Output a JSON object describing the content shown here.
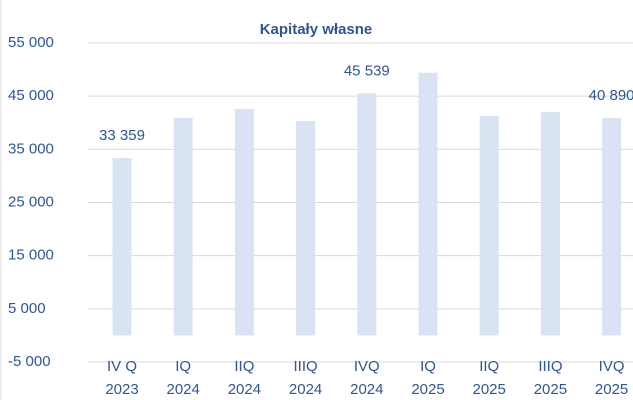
{
  "chart_data": {
    "type": "bar",
    "title": "Kapitały własne",
    "categories": [
      [
        "IV Q",
        "2023"
      ],
      [
        "IQ",
        "2024"
      ],
      [
        "IIQ",
        "2024"
      ],
      [
        "IIIQ",
        "2024"
      ],
      [
        "IVQ",
        "2024"
      ],
      [
        "IQ",
        "2025"
      ],
      [
        "IIQ",
        "2025"
      ],
      [
        "IIIQ",
        "2025"
      ],
      [
        "IVQ",
        "2025"
      ]
    ],
    "values": [
      33359,
      40900,
      42600,
      40300,
      45539,
      49400,
      41300,
      42000,
      40890
    ],
    "value_labels": [
      "33 359",
      null,
      null,
      null,
      "45 539",
      null,
      null,
      null,
      "40 890"
    ],
    "color": "#dae3f3",
    "ylim": [
      -5000,
      55000
    ],
    "yticks": [
      {
        "value": -5000,
        "label": "-5 000"
      },
      {
        "value": 5000,
        "label": "5 000"
      },
      {
        "value": 15000,
        "label": "15 000"
      },
      {
        "value": 25000,
        "label": "25 000"
      },
      {
        "value": 35000,
        "label": "35 000"
      },
      {
        "value": 45000,
        "label": "45 000"
      },
      {
        "value": 55000,
        "label": "55 000"
      }
    ],
    "grid": true
  }
}
